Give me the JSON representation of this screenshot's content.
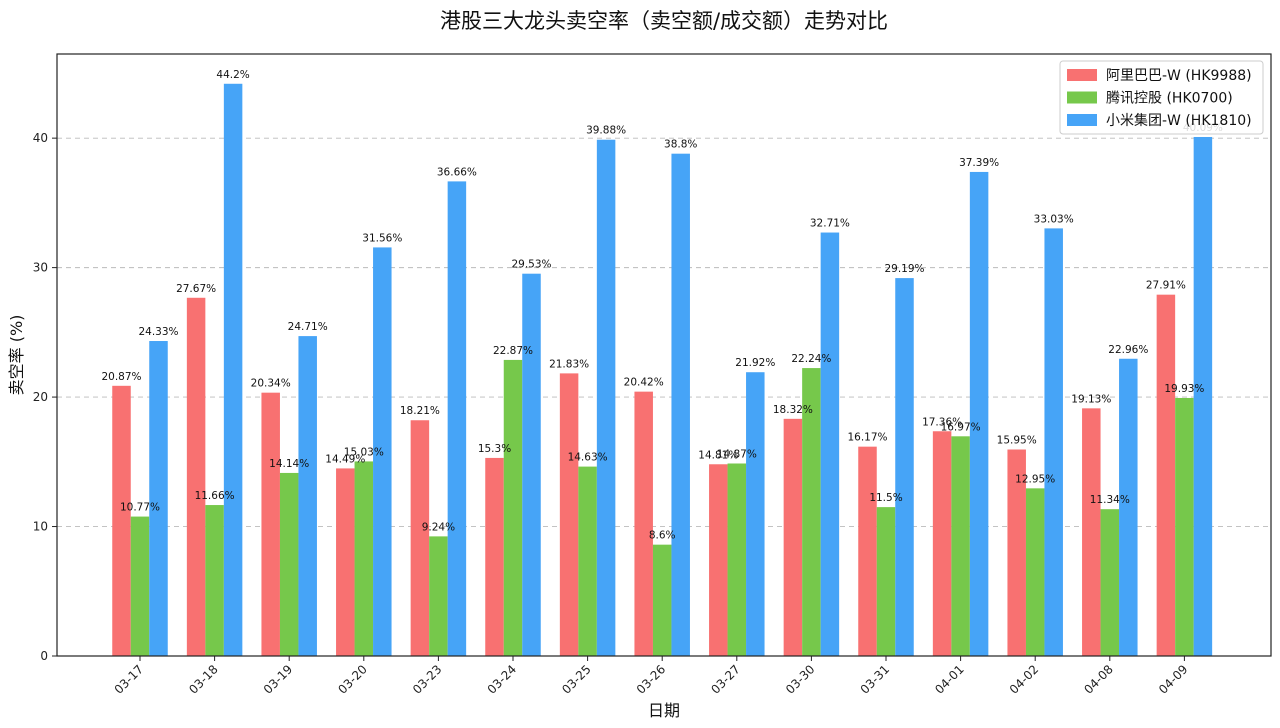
{
  "chart_data": {
    "type": "bar",
    "title": "港股三大龙头卖空率（卖空额/成交额）走势对比",
    "xlabel": "日期",
    "ylabel": "卖空率 (%)",
    "ylim": [
      0,
      46.5
    ],
    "yticks": [
      0,
      10,
      20,
      30,
      40
    ],
    "grid": "y-dashed",
    "legend_position": "top-right",
    "categories": [
      "03-17",
      "03-18",
      "03-19",
      "03-20",
      "03-23",
      "03-24",
      "03-25",
      "03-26",
      "03-27",
      "03-30",
      "03-31",
      "04-01",
      "04-02",
      "04-08",
      "04-09"
    ],
    "series": [
      {
        "name": "阿里巴巴-W (HK9988)",
        "color": "#f87171",
        "values": [
          20.87,
          27.67,
          20.34,
          14.49,
          18.21,
          15.3,
          21.83,
          20.42,
          14.81,
          18.32,
          16.17,
          17.36,
          15.95,
          19.13,
          27.91
        ],
        "labels": [
          "20.87%",
          "27.67%",
          "20.34%",
          "14.49%",
          "18.21%",
          "15.3%",
          "21.83%",
          "20.42%",
          "14.81%",
          "18.32%",
          "16.17%",
          "17.36%",
          "15.95%",
          "19.13%",
          "27.91%"
        ]
      },
      {
        "name": "腾讯控股 (HK0700)",
        "color": "#76c84b",
        "values": [
          10.77,
          11.66,
          14.14,
          15.03,
          9.24,
          22.87,
          14.63,
          8.6,
          14.87,
          22.24,
          11.5,
          16.97,
          12.95,
          11.34,
          19.93
        ],
        "labels": [
          "10.77%",
          "11.66%",
          "14.14%",
          "15.03%",
          "9.24%",
          "22.87%",
          "14.63%",
          "8.6%",
          "14.87%",
          "22.24%",
          "11.5%",
          "16.97%",
          "12.95%",
          "11.34%",
          "19.93%"
        ]
      },
      {
        "name": "小米集团-W (HK1810)",
        "color": "#46a4f7",
        "values": [
          24.33,
          44.2,
          24.71,
          31.56,
          36.66,
          29.53,
          39.88,
          38.8,
          21.92,
          32.71,
          29.19,
          37.39,
          33.03,
          22.96,
          40.09
        ],
        "labels": [
          "24.33%",
          "44.2%",
          "24.71%",
          "31.56%",
          "36.66%",
          "29.53%",
          "39.88%",
          "38.8%",
          "21.92%",
          "32.71%",
          "29.19%",
          "37.39%",
          "33.03%",
          "22.96%",
          "40.09%"
        ]
      }
    ]
  }
}
